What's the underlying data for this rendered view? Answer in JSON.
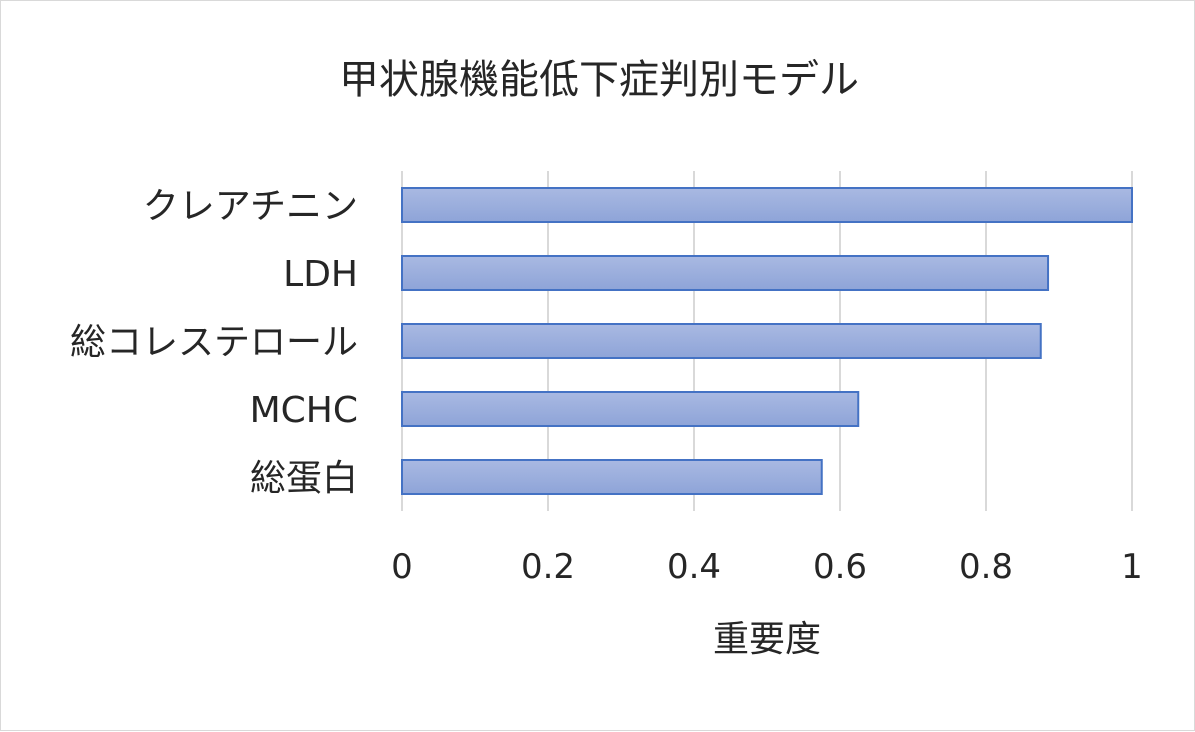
{
  "chart_data": {
    "type": "bar",
    "orientation": "horizontal",
    "title": "甲状腺機能低下症判別モデル",
    "xlabel": "重要度",
    "ylabel": "",
    "categories": [
      "クレアチニン",
      "LDH",
      "総コレステロール",
      "MCHC",
      "総蛋白"
    ],
    "values": [
      1.0,
      0.885,
      0.875,
      0.625,
      0.575
    ],
    "xlim": [
      0,
      1
    ],
    "ticks": [
      "0",
      "0.2",
      "0.4",
      "0.6",
      "0.8",
      "1"
    ],
    "grid": true,
    "legend": "none",
    "colors": {
      "bar_fill_top": "#a9b9e2",
      "bar_fill_bottom": "#8ea4d8",
      "bar_stroke": "#4472c4",
      "grid": "#d9d9d9",
      "text": "#262626"
    }
  }
}
